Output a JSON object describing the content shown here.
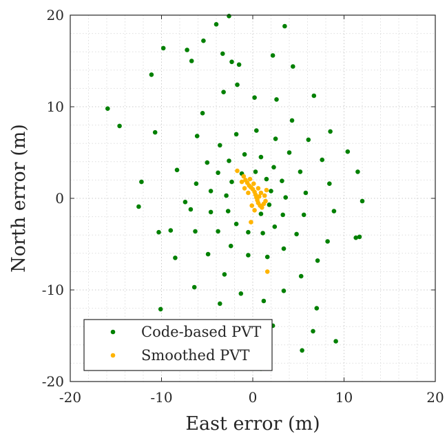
{
  "chart_data": {
    "type": "scatter",
    "xlabel": "East error (m)",
    "ylabel": "North error (m)",
    "xlim": [
      -20,
      20
    ],
    "ylim": [
      -20,
      20
    ],
    "xticks": [
      -20,
      -10,
      0,
      10,
      20
    ],
    "yticks": [
      -20,
      -10,
      0,
      10,
      20
    ],
    "xtick_labels": [
      "-20",
      "-10",
      "0",
      "10",
      "20"
    ],
    "ytick_labels": [
      "-20",
      "-10",
      "0",
      "10",
      "20"
    ],
    "grid": true,
    "minor_grid": true,
    "legend_position": "bottom-left",
    "series": [
      {
        "name": "Code-based PVT",
        "color": "#008000",
        "points": [
          [
            -2.6,
            19.9
          ],
          [
            -4.0,
            19.0
          ],
          [
            3.5,
            18.8
          ],
          [
            -9.8,
            16.4
          ],
          [
            -7.2,
            16.2
          ],
          [
            -5.4,
            17.2
          ],
          [
            -3.3,
            15.8
          ],
          [
            -2.3,
            14.9
          ],
          [
            -1.5,
            14.6
          ],
          [
            -6.7,
            15.0
          ],
          [
            -11.1,
            13.5
          ],
          [
            2.2,
            15.6
          ],
          [
            4.4,
            14.4
          ],
          [
            -15.9,
            9.8
          ],
          [
            -14.6,
            7.9
          ],
          [
            -10.7,
            7.2
          ],
          [
            -12.2,
            1.8
          ],
          [
            -12.5,
            -0.9
          ],
          [
            -10.3,
            -3.7
          ],
          [
            12.0,
            -0.3
          ],
          [
            11.7,
            -4.2
          ],
          [
            11.3,
            -4.3
          ],
          [
            10.4,
            5.1
          ],
          [
            11.5,
            2.9
          ],
          [
            8.5,
            7.3
          ],
          [
            6.7,
            11.2
          ],
          [
            -10.1,
            -12.1
          ],
          [
            9.1,
            -15.6
          ],
          [
            5.4,
            -16.6
          ],
          [
            0.9,
            -18.6
          ],
          [
            7.0,
            -12.0
          ],
          [
            6.6,
            -14.5
          ],
          [
            2.2,
            -13.9
          ],
          [
            -1.5,
            -14.5
          ],
          [
            -3.6,
            -11.5
          ],
          [
            -6.4,
            -9.7
          ],
          [
            -8.5,
            -6.5
          ],
          [
            -9.0,
            -3.5
          ],
          [
            -7.4,
            -0.4
          ],
          [
            -8.3,
            3.1
          ],
          [
            -6.1,
            6.8
          ],
          [
            -5.5,
            9.3
          ],
          [
            -3.2,
            11.6
          ],
          [
            -1.7,
            12.4
          ],
          [
            0.2,
            11.0
          ],
          [
            2.6,
            10.8
          ],
          [
            4.3,
            8.5
          ],
          [
            6.1,
            6.4
          ],
          [
            7.6,
            4.2
          ],
          [
            8.4,
            1.6
          ],
          [
            8.9,
            -1.4
          ],
          [
            8.2,
            -4.7
          ],
          [
            7.1,
            -6.8
          ],
          [
            5.3,
            -8.5
          ],
          [
            3.4,
            -10.1
          ],
          [
            1.2,
            -11.2
          ],
          [
            -1.3,
            -10.4
          ],
          [
            -3.1,
            -8.3
          ],
          [
            -4.9,
            -6.1
          ],
          [
            -6.3,
            -3.6
          ],
          [
            -6.8,
            -1.2
          ],
          [
            -6.2,
            1.6
          ],
          [
            -5.0,
            3.9
          ],
          [
            -3.6,
            5.8
          ],
          [
            -1.8,
            7.0
          ],
          [
            0.4,
            7.4
          ],
          [
            2.5,
            6.5
          ],
          [
            4.0,
            5.0
          ],
          [
            5.2,
            2.9
          ],
          [
            5.8,
            0.6
          ],
          [
            5.6,
            -1.8
          ],
          [
            4.8,
            -3.9
          ],
          [
            3.4,
            -5.5
          ],
          [
            1.6,
            -6.4
          ],
          [
            -0.5,
            -6.2
          ],
          [
            -2.4,
            -5.2
          ],
          [
            -3.8,
            -3.6
          ],
          [
            -4.6,
            -1.5
          ],
          [
            -4.6,
            0.8
          ],
          [
            -3.8,
            2.8
          ],
          [
            -2.6,
            4.1
          ],
          [
            -0.9,
            4.8
          ],
          [
            0.9,
            4.5
          ],
          [
            2.3,
            3.4
          ],
          [
            3.2,
            1.9
          ],
          [
            3.6,
            0.1
          ],
          [
            3.3,
            -1.8
          ],
          [
            2.4,
            -3.1
          ],
          [
            1.1,
            -3.8
          ],
          [
            -0.5,
            -3.7
          ],
          [
            -1.8,
            -2.8
          ],
          [
            -2.7,
            -1.4
          ],
          [
            -2.9,
            0.3
          ],
          [
            -2.3,
            1.8
          ],
          [
            -1.2,
            2.7
          ],
          [
            0.3,
            2.9
          ],
          [
            1.5,
            2.1
          ],
          [
            2.0,
            0.8
          ],
          [
            1.8,
            -0.7
          ],
          [
            0.9,
            -1.7
          ]
        ]
      },
      {
        "name": "Smoothed PVT",
        "color": "#ffb400",
        "points": [
          [
            -1.0,
            2.4
          ],
          [
            -0.8,
            2.0
          ],
          [
            -0.6,
            1.7
          ],
          [
            -0.4,
            1.4
          ],
          [
            -0.2,
            1.2
          ],
          [
            0.0,
            1.0
          ],
          [
            0.2,
            0.7
          ],
          [
            0.3,
            0.4
          ],
          [
            0.4,
            0.1
          ],
          [
            0.5,
            -0.2
          ],
          [
            0.6,
            -0.5
          ],
          [
            0.8,
            -0.8
          ],
          [
            1.0,
            -1.0
          ],
          [
            1.2,
            -0.6
          ],
          [
            1.4,
            -0.3
          ],
          [
            1.3,
            0.3
          ],
          [
            0.9,
            0.6
          ],
          [
            -0.9,
            1.1
          ],
          [
            -1.2,
            1.8
          ],
          [
            -0.3,
            2.1
          ],
          [
            0.1,
            1.6
          ],
          [
            0.6,
            1.1
          ],
          [
            -0.1,
            -0.8
          ],
          [
            0.2,
            -1.3
          ],
          [
            -1.7,
            3.0
          ],
          [
            -0.2,
            -2.6
          ],
          [
            1.6,
            -8.0
          ],
          [
            1.5,
            0.9
          ],
          [
            0.7,
            0.2
          ],
          [
            -0.5,
            0.6
          ]
        ]
      }
    ]
  }
}
